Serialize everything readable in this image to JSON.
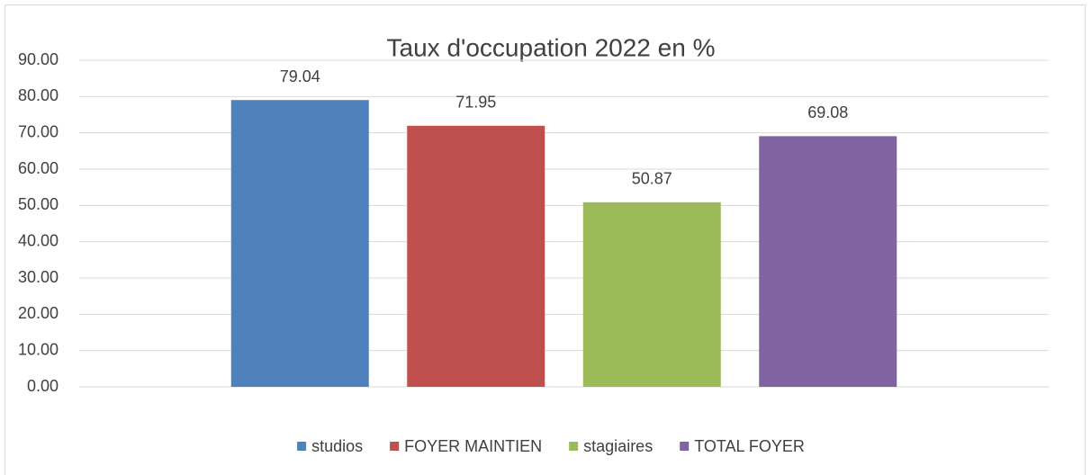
{
  "chart_data": {
    "type": "bar",
    "title": "Taux d'occupation 2022 en %",
    "categories": [
      null
    ],
    "series": [
      {
        "name": "studios",
        "color": "#4f81bd",
        "values": [
          79.04
        ]
      },
      {
        "name": "FOYER MAINTIEN",
        "color": "#c0504d",
        "values": [
          71.95
        ]
      },
      {
        "name": "stagiaires",
        "color": "#9bbb59",
        "values": [
          50.87
        ]
      },
      {
        "name": "TOTAL FOYER",
        "color": "#8064a2",
        "values": [
          69.08
        ]
      }
    ],
    "ylim": [
      0,
      90
    ],
    "yticks": [
      {
        "value": 0,
        "label": "0.00"
      },
      {
        "value": 10,
        "label": "10.00"
      },
      {
        "value": 20,
        "label": "20.00"
      },
      {
        "value": 30,
        "label": "30.00"
      },
      {
        "value": 40,
        "label": "40.00"
      },
      {
        "value": 50,
        "label": "50.00"
      },
      {
        "value": 60,
        "label": "60.00"
      },
      {
        "value": 70,
        "label": "70.00"
      },
      {
        "value": 80,
        "label": "80.00"
      },
      {
        "value": 90,
        "label": "90.00"
      }
    ],
    "grid": true,
    "legend": "bottom"
  }
}
